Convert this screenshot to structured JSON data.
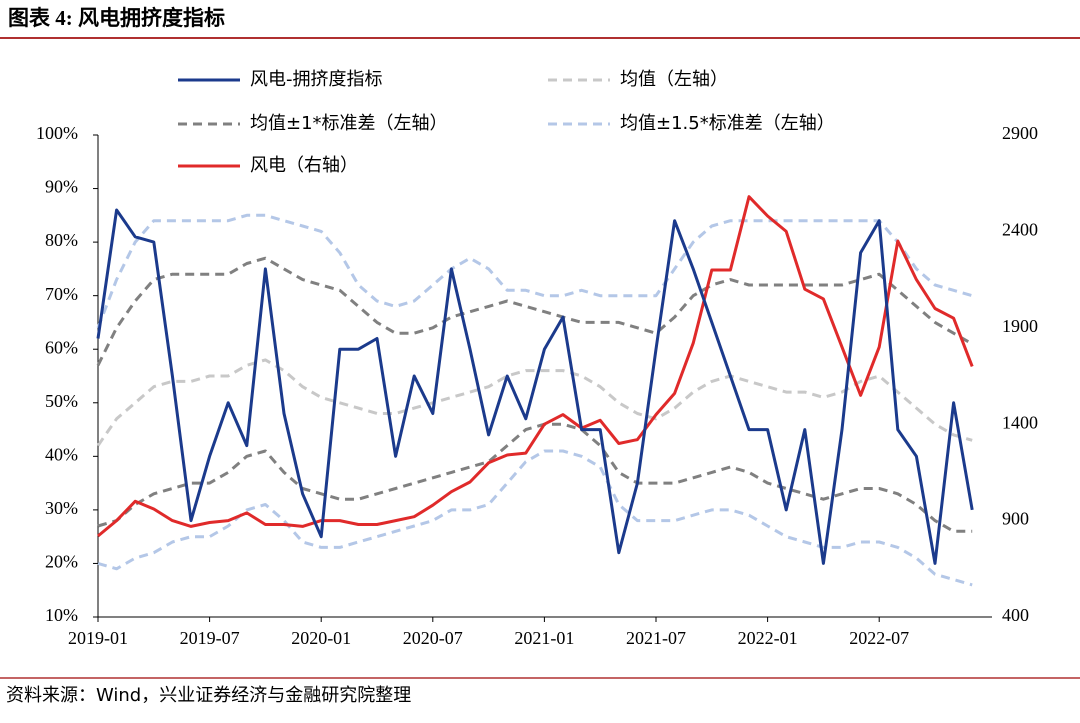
{
  "chart_data": {
    "type": "line",
    "title": "图表 4:  风电拥挤度指标",
    "source": "资料来源：Wind，兴业证券经济与金融研究院整理",
    "categories": [
      "2019-01",
      null,
      null,
      null,
      null,
      null,
      "2019-07",
      null,
      null,
      null,
      null,
      null,
      "2020-01",
      null,
      null,
      null,
      null,
      null,
      "2020-07",
      null,
      null,
      null,
      null,
      null,
      "2021-01",
      null,
      null,
      null,
      null,
      null,
      "2021-07",
      null,
      null,
      null,
      null,
      null,
      "2022-01",
      null,
      null,
      null,
      null,
      null,
      "2022-07",
      null,
      null,
      null,
      null,
      null
    ],
    "series": [
      {
        "name": "风电-拥挤度指标",
        "color": "#1b3a8c",
        "width": 3,
        "values": [
          62,
          86,
          81,
          80,
          55,
          28,
          40,
          50,
          42,
          75,
          48,
          33,
          25,
          60,
          60,
          62,
          40,
          55,
          48,
          75,
          60,
          44,
          55,
          47,
          60,
          66,
          45,
          45,
          22,
          35,
          60,
          84,
          75,
          65,
          55,
          45,
          45,
          30,
          45,
          20,
          45,
          78,
          84,
          45,
          40,
          20,
          50,
          30
        ]
      },
      {
        "name": "均值（左轴）",
        "color": "#c8c8c8",
        "width": 3,
        "dash": "9 6",
        "values": [
          42,
          47,
          50,
          53,
          54,
          54,
          55,
          55,
          57,
          58,
          56,
          53,
          51,
          50,
          49,
          48,
          48,
          49,
          50,
          51,
          52,
          53,
          55,
          56,
          56,
          56,
          55,
          53,
          50,
          48,
          47,
          49,
          52,
          54,
          55,
          54,
          53,
          52,
          52,
          51,
          52,
          54,
          55,
          52,
          49,
          46,
          44,
          43
        ]
      },
      {
        "name": "均值±1*标准差（左轴）",
        "color": "#808080",
        "width": 3,
        "dash": "9 6",
        "values": [
          57,
          64,
          69,
          73,
          74,
          74,
          74,
          74,
          76,
          77,
          75,
          73,
          72,
          71,
          68,
          65,
          63,
          63,
          64,
          66,
          67,
          68,
          69,
          68,
          67,
          66,
          65,
          65,
          65,
          64,
          63,
          66,
          70,
          72,
          73,
          72,
          72,
          72,
          72,
          72,
          72,
          73,
          74,
          71,
          68,
          65,
          63,
          61
        ],
        "lower_values": [
          27,
          28,
          31,
          33,
          34,
          35,
          35,
          37,
          40,
          41,
          37,
          34,
          33,
          32,
          32,
          33,
          34,
          35,
          36,
          37,
          38,
          39,
          42,
          45,
          46,
          46,
          45,
          42,
          37,
          35,
          35,
          35,
          36,
          37,
          38,
          37,
          35,
          34,
          33,
          32,
          33,
          34,
          34,
          33,
          31,
          28,
          26,
          26
        ]
      },
      {
        "name": "均值±1.5*标准差（左轴）",
        "color": "#b4c7e7",
        "width": 3,
        "dash": "9 6",
        "values": [
          64,
          73,
          80,
          84,
          84,
          84,
          84,
          84,
          85,
          85,
          84,
          83,
          82,
          78,
          72,
          69,
          68,
          69,
          72,
          75,
          77,
          75,
          71,
          71,
          70,
          70,
          71,
          70,
          70,
          70,
          70,
          75,
          80,
          83,
          84,
          84,
          84,
          84,
          84,
          84,
          84,
          84,
          84,
          80,
          75,
          72,
          71,
          70
        ],
        "lower_values": [
          20,
          19,
          21,
          22,
          24,
          25,
          25,
          27,
          30,
          31,
          28,
          24,
          23,
          23,
          24,
          25,
          26,
          27,
          28,
          30,
          30,
          31,
          35,
          39,
          41,
          41,
          40,
          38,
          31,
          28,
          28,
          28,
          29,
          30,
          30,
          29,
          27,
          25,
          24,
          23,
          23,
          24,
          24,
          23,
          21,
          18,
          17,
          16
        ]
      },
      {
        "name": "风电（右轴）",
        "color": "#e02a2a",
        "width": 3,
        "axis": "y2",
        "values": [
          820,
          900,
          1000,
          960,
          900,
          870,
          890,
          900,
          940,
          880,
          880,
          870,
          900,
          900,
          880,
          880,
          900,
          920,
          980,
          1050,
          1100,
          1200,
          1240,
          1250,
          1400,
          1450,
          1380,
          1420,
          1300,
          1320,
          1450,
          1560,
          1820,
          2200,
          2200,
          2580,
          2480,
          2400,
          2100,
          2050,
          1800,
          1550,
          1800,
          2350,
          2150,
          2000,
          1950,
          1700
        ]
      }
    ],
    "ylim": [
      10,
      100
    ],
    "yticks": [
      {
        "value": 10,
        "label": "10%"
      },
      {
        "value": 20,
        "label": "20%"
      },
      {
        "value": 30,
        "label": "30%"
      },
      {
        "value": 40,
        "label": "40%"
      },
      {
        "value": 50,
        "label": "50%"
      },
      {
        "value": 60,
        "label": "60%"
      },
      {
        "value": 70,
        "label": "70%"
      },
      {
        "value": 80,
        "label": "80%"
      },
      {
        "value": 90,
        "label": "90%"
      },
      {
        "value": 100,
        "label": "100%"
      }
    ],
    "y2lim": [
      400,
      2900
    ],
    "y2ticks": [
      400,
      900,
      1400,
      1900,
      2400,
      2900
    ],
    "grid": false
  }
}
